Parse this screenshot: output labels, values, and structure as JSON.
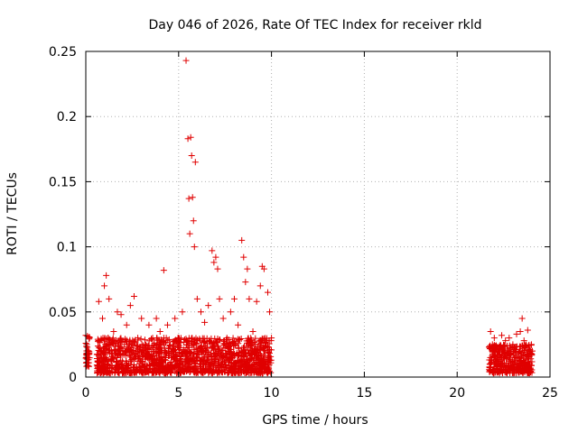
{
  "chart_data": {
    "type": "scatter",
    "title": "Day 046 of 2026, Rate Of TEC Index for receiver rkld",
    "xlabel": "GPS time / hours",
    "ylabel": "ROTI / TECUs",
    "xlim": [
      0,
      25
    ],
    "ylim": [
      0,
      0.25
    ],
    "grid": true,
    "marker": "+",
    "color": "#e00000",
    "xticks": [
      0,
      5,
      10,
      15,
      20,
      25
    ],
    "xtick_labels": [
      "0",
      "5",
      "10",
      "15",
      "20",
      "25"
    ],
    "yticks": [
      0,
      0.05,
      0.1,
      0.15,
      0.2,
      0.25
    ],
    "ytick_labels": [
      "0",
      "0.05",
      "0.1",
      "0.15",
      "0.2",
      "0.25"
    ],
    "series": [
      {
        "name": "ROTI",
        "x": [
          0.0,
          0.02,
          0.05,
          0.1,
          0.15,
          0.2,
          0.7,
          0.8,
          0.9,
          1.0,
          1.1,
          1.2,
          1.25,
          1.3,
          1.5,
          1.7,
          1.9,
          2.0,
          2.2,
          2.4,
          2.6,
          2.8,
          3.0,
          3.2,
          3.4,
          3.6,
          3.8,
          4.0,
          4.2,
          4.4,
          4.6,
          4.8,
          5.0,
          5.2,
          5.4,
          5.5,
          5.55,
          5.6,
          5.65,
          5.7,
          5.75,
          5.8,
          5.85,
          5.9,
          6.0,
          6.2,
          6.4,
          6.6,
          6.8,
          6.9,
          7.0,
          7.1,
          7.2,
          7.4,
          7.6,
          7.8,
          8.0,
          8.2,
          8.4,
          8.5,
          8.6,
          8.7,
          8.8,
          9.0,
          9.2,
          9.4,
          9.5,
          9.6,
          9.8,
          9.9,
          10.0,
          21.8,
          21.9,
          22.0,
          22.2,
          22.4,
          22.6,
          22.8,
          23.0,
          23.2,
          23.4,
          23.5,
          23.6,
          23.8,
          24.0,
          24.05
        ],
        "y": [
          0.032,
          0.015,
          0.025,
          0.009,
          0.02,
          0.03,
          0.058,
          0.02,
          0.045,
          0.07,
          0.078,
          0.03,
          0.06,
          0.02,
          0.035,
          0.05,
          0.048,
          0.02,
          0.04,
          0.055,
          0.062,
          0.03,
          0.045,
          0.025,
          0.04,
          0.03,
          0.045,
          0.035,
          0.082,
          0.04,
          0.02,
          0.045,
          0.03,
          0.05,
          0.243,
          0.183,
          0.137,
          0.11,
          0.184,
          0.17,
          0.138,
          0.12,
          0.1,
          0.165,
          0.06,
          0.05,
          0.042,
          0.055,
          0.097,
          0.088,
          0.092,
          0.083,
          0.06,
          0.045,
          0.03,
          0.05,
          0.06,
          0.04,
          0.105,
          0.092,
          0.073,
          0.083,
          0.06,
          0.035,
          0.058,
          0.07,
          0.085,
          0.083,
          0.065,
          0.05,
          0.03,
          0.035,
          0.025,
          0.03,
          0.02,
          0.032,
          0.028,
          0.03,
          0.025,
          0.033,
          0.035,
          0.045,
          0.028,
          0.036,
          0.025,
          0.02
        ],
        "dense_band": {
          "segments": [
            {
              "x_start": 0.0,
              "x_end": 0.2,
              "y_min": 0.008,
              "y_max": 0.033
            },
            {
              "x_start": 0.6,
              "x_end": 10.0,
              "y_min": 0.003,
              "y_max": 0.03
            },
            {
              "x_start": 21.7,
              "x_end": 24.05,
              "y_min": 0.003,
              "y_max": 0.025
            }
          ]
        }
      }
    ]
  }
}
